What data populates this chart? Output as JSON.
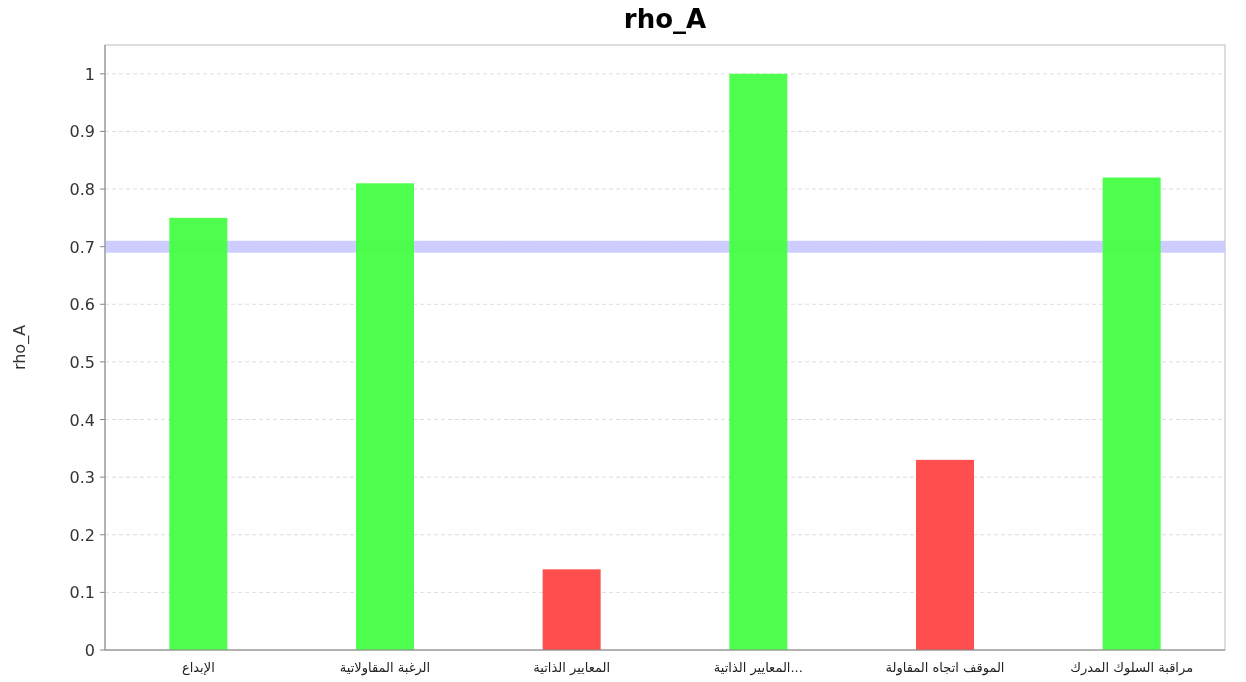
{
  "chart_data": {
    "type": "bar",
    "title": "rho_A",
    "ylabel": "rho_A",
    "categories": [
      "الإبداع",
      "الرغبة المقاولاتية",
      "المعايير الذاتية",
      "المعايير الذاتية...",
      "الموقف اتجاه المقاولة",
      "مراقبة السلوك المدرك"
    ],
    "values": [
      0.75,
      0.81,
      0.14,
      1.0,
      0.33,
      0.82
    ],
    "colors": [
      "#44ff44",
      "#44ff44",
      "#ff4444",
      "#44ff44",
      "#ff4444",
      "#44ff44"
    ],
    "ylim": [
      0,
      1.05
    ],
    "yticks": [
      0,
      0.1,
      0.2,
      0.3,
      0.4,
      0.5,
      0.6,
      0.7,
      0.8,
      0.9,
      1
    ],
    "grid": "y",
    "ref_lines": [
      {
        "axis": "y",
        "value": 0.7,
        "color": "#c8c8ff"
      }
    ]
  }
}
